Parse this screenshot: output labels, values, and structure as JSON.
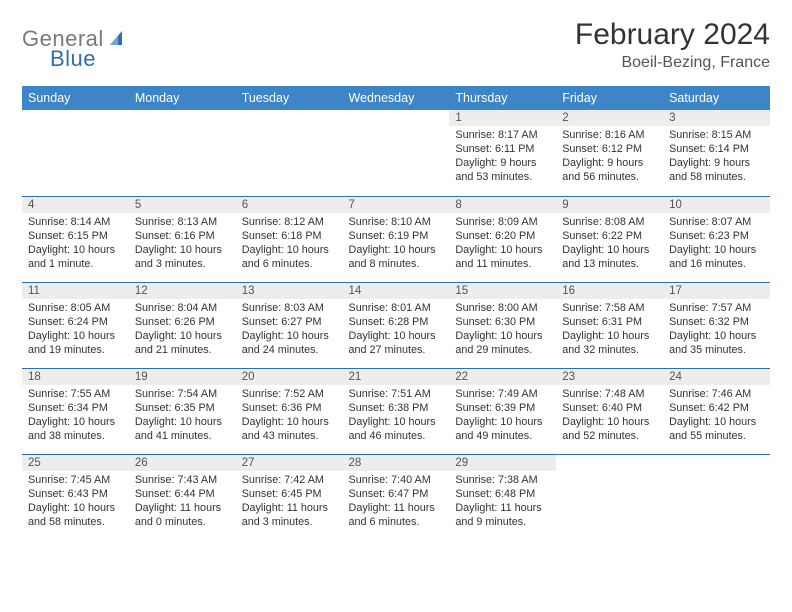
{
  "logo": {
    "part1": "General",
    "part2": "Blue"
  },
  "title": "February 2024",
  "location": "Boeil-Bezing, France",
  "colors": {
    "header_bg": "#3d85c6",
    "border": "#2e6fb0",
    "daynum_bg": "#ededed",
    "logo_gray": "#7a7a7a",
    "logo_blue": "#2e6fb0"
  },
  "weekdays": [
    "Sunday",
    "Monday",
    "Tuesday",
    "Wednesday",
    "Thursday",
    "Friday",
    "Saturday"
  ],
  "first_weekday_index": 4,
  "days": [
    {
      "n": "1",
      "sunrise": "Sunrise: 8:17 AM",
      "sunset": "Sunset: 6:11 PM",
      "daylight": "Daylight: 9 hours and 53 minutes."
    },
    {
      "n": "2",
      "sunrise": "Sunrise: 8:16 AM",
      "sunset": "Sunset: 6:12 PM",
      "daylight": "Daylight: 9 hours and 56 minutes."
    },
    {
      "n": "3",
      "sunrise": "Sunrise: 8:15 AM",
      "sunset": "Sunset: 6:14 PM",
      "daylight": "Daylight: 9 hours and 58 minutes."
    },
    {
      "n": "4",
      "sunrise": "Sunrise: 8:14 AM",
      "sunset": "Sunset: 6:15 PM",
      "daylight": "Daylight: 10 hours and 1 minute."
    },
    {
      "n": "5",
      "sunrise": "Sunrise: 8:13 AM",
      "sunset": "Sunset: 6:16 PM",
      "daylight": "Daylight: 10 hours and 3 minutes."
    },
    {
      "n": "6",
      "sunrise": "Sunrise: 8:12 AM",
      "sunset": "Sunset: 6:18 PM",
      "daylight": "Daylight: 10 hours and 6 minutes."
    },
    {
      "n": "7",
      "sunrise": "Sunrise: 8:10 AM",
      "sunset": "Sunset: 6:19 PM",
      "daylight": "Daylight: 10 hours and 8 minutes."
    },
    {
      "n": "8",
      "sunrise": "Sunrise: 8:09 AM",
      "sunset": "Sunset: 6:20 PM",
      "daylight": "Daylight: 10 hours and 11 minutes."
    },
    {
      "n": "9",
      "sunrise": "Sunrise: 8:08 AM",
      "sunset": "Sunset: 6:22 PM",
      "daylight": "Daylight: 10 hours and 13 minutes."
    },
    {
      "n": "10",
      "sunrise": "Sunrise: 8:07 AM",
      "sunset": "Sunset: 6:23 PM",
      "daylight": "Daylight: 10 hours and 16 minutes."
    },
    {
      "n": "11",
      "sunrise": "Sunrise: 8:05 AM",
      "sunset": "Sunset: 6:24 PM",
      "daylight": "Daylight: 10 hours and 19 minutes."
    },
    {
      "n": "12",
      "sunrise": "Sunrise: 8:04 AM",
      "sunset": "Sunset: 6:26 PM",
      "daylight": "Daylight: 10 hours and 21 minutes."
    },
    {
      "n": "13",
      "sunrise": "Sunrise: 8:03 AM",
      "sunset": "Sunset: 6:27 PM",
      "daylight": "Daylight: 10 hours and 24 minutes."
    },
    {
      "n": "14",
      "sunrise": "Sunrise: 8:01 AM",
      "sunset": "Sunset: 6:28 PM",
      "daylight": "Daylight: 10 hours and 27 minutes."
    },
    {
      "n": "15",
      "sunrise": "Sunrise: 8:00 AM",
      "sunset": "Sunset: 6:30 PM",
      "daylight": "Daylight: 10 hours and 29 minutes."
    },
    {
      "n": "16",
      "sunrise": "Sunrise: 7:58 AM",
      "sunset": "Sunset: 6:31 PM",
      "daylight": "Daylight: 10 hours and 32 minutes."
    },
    {
      "n": "17",
      "sunrise": "Sunrise: 7:57 AM",
      "sunset": "Sunset: 6:32 PM",
      "daylight": "Daylight: 10 hours and 35 minutes."
    },
    {
      "n": "18",
      "sunrise": "Sunrise: 7:55 AM",
      "sunset": "Sunset: 6:34 PM",
      "daylight": "Daylight: 10 hours and 38 minutes."
    },
    {
      "n": "19",
      "sunrise": "Sunrise: 7:54 AM",
      "sunset": "Sunset: 6:35 PM",
      "daylight": "Daylight: 10 hours and 41 minutes."
    },
    {
      "n": "20",
      "sunrise": "Sunrise: 7:52 AM",
      "sunset": "Sunset: 6:36 PM",
      "daylight": "Daylight: 10 hours and 43 minutes."
    },
    {
      "n": "21",
      "sunrise": "Sunrise: 7:51 AM",
      "sunset": "Sunset: 6:38 PM",
      "daylight": "Daylight: 10 hours and 46 minutes."
    },
    {
      "n": "22",
      "sunrise": "Sunrise: 7:49 AM",
      "sunset": "Sunset: 6:39 PM",
      "daylight": "Daylight: 10 hours and 49 minutes."
    },
    {
      "n": "23",
      "sunrise": "Sunrise: 7:48 AM",
      "sunset": "Sunset: 6:40 PM",
      "daylight": "Daylight: 10 hours and 52 minutes."
    },
    {
      "n": "24",
      "sunrise": "Sunrise: 7:46 AM",
      "sunset": "Sunset: 6:42 PM",
      "daylight": "Daylight: 10 hours and 55 minutes."
    },
    {
      "n": "25",
      "sunrise": "Sunrise: 7:45 AM",
      "sunset": "Sunset: 6:43 PM",
      "daylight": "Daylight: 10 hours and 58 minutes."
    },
    {
      "n": "26",
      "sunrise": "Sunrise: 7:43 AM",
      "sunset": "Sunset: 6:44 PM",
      "daylight": "Daylight: 11 hours and 0 minutes."
    },
    {
      "n": "27",
      "sunrise": "Sunrise: 7:42 AM",
      "sunset": "Sunset: 6:45 PM",
      "daylight": "Daylight: 11 hours and 3 minutes."
    },
    {
      "n": "28",
      "sunrise": "Sunrise: 7:40 AM",
      "sunset": "Sunset: 6:47 PM",
      "daylight": "Daylight: 11 hours and 6 minutes."
    },
    {
      "n": "29",
      "sunrise": "Sunrise: 7:38 AM",
      "sunset": "Sunset: 6:48 PM",
      "daylight": "Daylight: 11 hours and 9 minutes."
    }
  ]
}
